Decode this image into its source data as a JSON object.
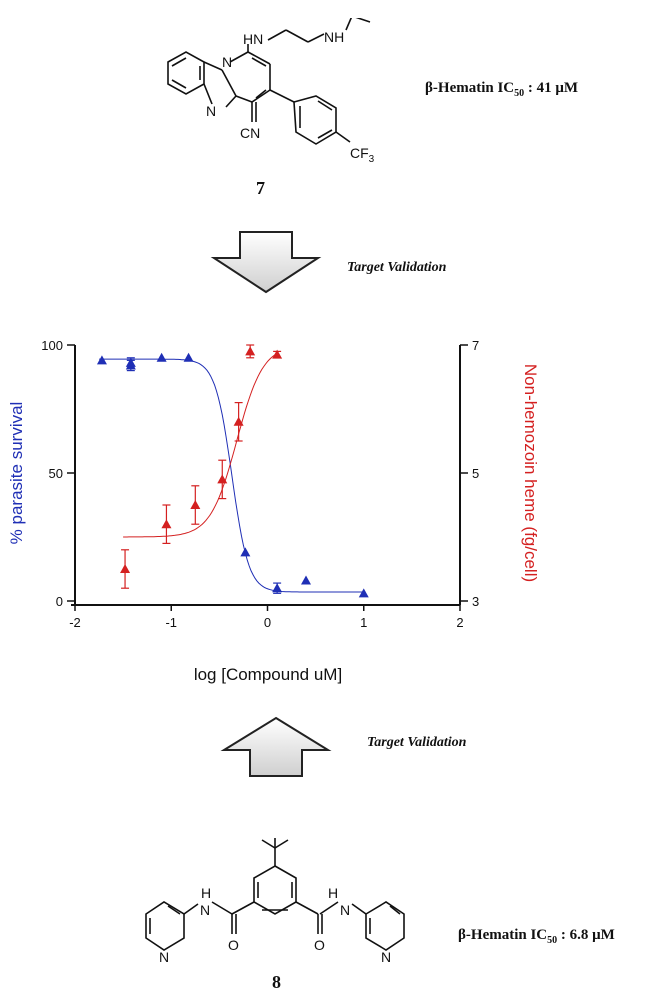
{
  "compound_7": {
    "number": "7",
    "ic50_label": "β-Hematin IC",
    "ic50_sub": "50",
    "ic50_value": " : 41 μM",
    "atoms": {
      "amine_nh_1": "HN",
      "amine_nh_2": "NH",
      "ring_n": "N",
      "imidazole_n": "N",
      "nitrile": "CN",
      "cf3": "CF",
      "cf3_sub": "3"
    }
  },
  "compound_8": {
    "number": "8",
    "ic50_label": "β-Hematin IC",
    "ic50_sub": "50",
    "ic50_value": " : 6.8 μM",
    "atoms": {
      "amide_nh": "H",
      "amide_n": "N",
      "carbonyl_o": "O",
      "pyridine_n": "N"
    }
  },
  "target_validation_top": "Target Validation",
  "target_validation_bottom": "Target Validation",
  "chart_data": {
    "type": "scatter",
    "xlabel": "log [Compound uM]",
    "ylabel_left": "% parasite survival",
    "ylabel_right": "Non-hemozoin heme  (fg/cell)",
    "xlim": [
      -2,
      2
    ],
    "xticks": [
      -2,
      -1,
      0,
      1,
      2
    ],
    "ylim_left": [
      0,
      100
    ],
    "yticks_left": [
      0,
      50,
      100
    ],
    "ylim_right": [
      3,
      7
    ],
    "yticks_right": [
      3,
      5,
      7
    ],
    "grid": false,
    "series": [
      {
        "axis": "left",
        "color": "#1f2fb5",
        "marker": "triangle",
        "x": [
          -1.72,
          -1.42,
          -1.42,
          -1.1,
          -0.82,
          -0.23,
          0.1,
          0.4,
          1.0
        ],
        "y": [
          94,
          92,
          93,
          95,
          95,
          19,
          5,
          8,
          3
        ],
        "err": [
          0,
          2,
          2,
          0,
          0,
          0,
          2,
          0,
          0
        ],
        "fit": {
          "top": 94.5,
          "bottom": 3.5,
          "logIC50": -0.37,
          "hill": 5
        }
      },
      {
        "axis": "right",
        "color": "#d42020",
        "marker": "triangle",
        "x": [
          -1.48,
          -1.05,
          -0.75,
          -0.47,
          -0.3,
          -0.18,
          0.1
        ],
        "y": [
          3.5,
          4.2,
          4.5,
          4.9,
          5.8,
          6.9,
          6.85
        ],
        "err": [
          0.3,
          0.3,
          0.3,
          0.3,
          0.3,
          0.1,
          0.05
        ],
        "fit": {
          "bottom": 4.0,
          "top": 7.0,
          "logEC50": -0.32,
          "hill": 3.2,
          "xmin": -1.5,
          "xmax": 0.1
        }
      }
    ]
  }
}
